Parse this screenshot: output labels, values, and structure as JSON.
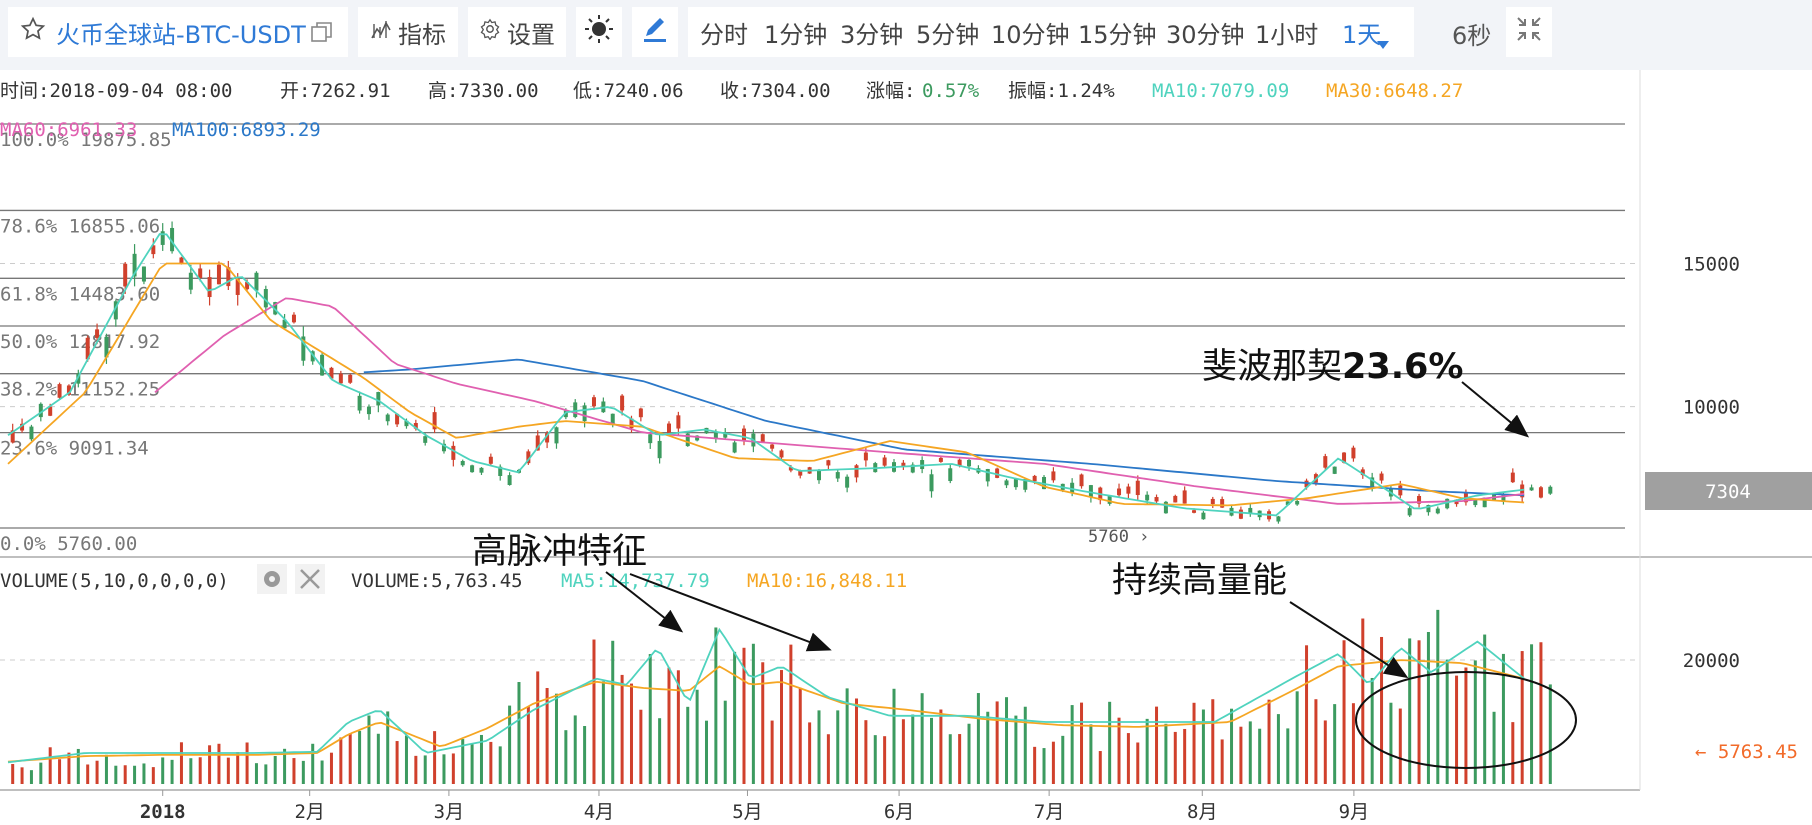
{
  "toolbar": {
    "title": "火币全球站-BTC-USDT",
    "indicators_label": "指标",
    "settings_label": "设置",
    "periods": [
      "分时",
      "1分钟",
      "3分钟",
      "5分钟",
      "10分钟",
      "15分钟",
      "30分钟",
      "1小时",
      "1天"
    ],
    "active_period": "1天",
    "refresh_label": "6秒"
  },
  "info": {
    "time": "时间:2018-09-04 08:00",
    "open": "开:7262.91",
    "high": "高:7330.00",
    "low": "低:7240.06",
    "close": "收:7304.00",
    "change_label": "涨幅:",
    "change_value": "0.57%",
    "amp": "振幅:1.24%",
    "ma10": "MA10:7079.09",
    "ma30": "MA30:6648.27",
    "ma60": "MA60:6961.33",
    "ma100": "MA100:6893.29"
  },
  "volume_header": {
    "title": "VOLUME(5,10,0,0,0,0)",
    "value": "VOLUME:5,763.45",
    "ma5": "MA5:14,737.79",
    "ma10": "MA10:16,848.11"
  },
  "annotations": {
    "fib": "斐波那契",
    "fib_pct": "23.6%",
    "pulse": "高脉冲特征",
    "sustained": "持续高量能"
  },
  "colors": {
    "up": "#d0402c",
    "down": "#3c9a5f",
    "ma10": "#4fd3be",
    "ma30": "#f5a623",
    "ma60": "#e060b0",
    "ma100": "#2b78c8",
    "accent": "#2f7ad6",
    "vol_current": "#f26b2a"
  },
  "icons": {
    "star": "star-outline-icon",
    "fullscreen": "window-icon",
    "indicators": "bar-indicator-icon",
    "settings": "gear-icon",
    "theme": "sun-icon",
    "draw": "pencil-icon",
    "collapse": "collapse-arrows-icon",
    "dropdown": "caret-down-icon"
  },
  "chart_data": {
    "type": "candlestick",
    "x_labels": [
      "2018",
      "2月",
      "3月",
      "4月",
      "5月",
      "6月",
      "7月",
      "8月",
      "9月"
    ],
    "fibonacci": [
      {
        "label": "100.0%",
        "value": 19875.85
      },
      {
        "label": "78.6%",
        "value": 16855.06
      },
      {
        "label": "61.8%",
        "value": 14483.6
      },
      {
        "label": "50.0%",
        "value": 12817.92
      },
      {
        "label": "38.2%",
        "value": 11152.25
      },
      {
        "label": "23.6%",
        "value": 9091.34
      },
      {
        "label": "0.0%",
        "value": 5760.0
      }
    ],
    "price_ticks": [
      15000,
      10000
    ],
    "current_price": 7304,
    "low_marker": 5760,
    "volume_ticks": [
      20000
    ],
    "current_volume": 5763.45,
    "ma_price_knots": {
      "ma10": [
        [
          0,
          9000
        ],
        [
          0.04,
          10500
        ],
        [
          0.08,
          14500
        ],
        [
          0.1,
          16200
        ],
        [
          0.13,
          14000
        ],
        [
          0.15,
          14600
        ],
        [
          0.18,
          13000
        ],
        [
          0.21,
          10900
        ],
        [
          0.24,
          10200
        ],
        [
          0.27,
          9000
        ],
        [
          0.3,
          8100
        ],
        [
          0.33,
          7700
        ],
        [
          0.36,
          9800
        ],
        [
          0.39,
          10000
        ],
        [
          0.42,
          9000
        ],
        [
          0.45,
          9200
        ],
        [
          0.48,
          8900
        ],
        [
          0.51,
          7750
        ],
        [
          0.56,
          7850
        ],
        [
          0.61,
          8000
        ],
        [
          0.65,
          7500
        ],
        [
          0.7,
          7000
        ],
        [
          0.76,
          6450
        ],
        [
          0.82,
          6200
        ],
        [
          0.86,
          8200
        ],
        [
          0.88,
          7500
        ],
        [
          0.91,
          6400
        ],
        [
          0.95,
          6900
        ],
        [
          0.98,
          7100
        ]
      ],
      "ma30": [
        [
          0,
          8000
        ],
        [
          0.05,
          10500
        ],
        [
          0.1,
          15000
        ],
        [
          0.14,
          15000
        ],
        [
          0.17,
          13000
        ],
        [
          0.2,
          12000
        ],
        [
          0.23,
          11000
        ],
        [
          0.26,
          9800
        ],
        [
          0.29,
          8900
        ],
        [
          0.33,
          9300
        ],
        [
          0.36,
          9500
        ],
        [
          0.41,
          9300
        ],
        [
          0.47,
          8200
        ],
        [
          0.52,
          8100
        ],
        [
          0.57,
          8800
        ],
        [
          0.62,
          8400
        ],
        [
          0.67,
          7200
        ],
        [
          0.72,
          6600
        ],
        [
          0.79,
          6550
        ],
        [
          0.84,
          6800
        ],
        [
          0.9,
          7300
        ],
        [
          0.94,
          6800
        ],
        [
          0.98,
          6650
        ]
      ],
      "ma60": [
        [
          0.095,
          10500
        ],
        [
          0.14,
          12500
        ],
        [
          0.18,
          13800
        ],
        [
          0.21,
          13500
        ],
        [
          0.25,
          11500
        ],
        [
          0.29,
          10800
        ],
        [
          0.34,
          10200
        ],
        [
          0.41,
          9100
        ],
        [
          0.5,
          8700
        ],
        [
          0.57,
          8400
        ],
        [
          0.67,
          8000
        ],
        [
          0.77,
          7200
        ],
        [
          0.86,
          6600
        ],
        [
          0.94,
          6700
        ],
        [
          0.98,
          6950
        ]
      ],
      "ma100": [
        [
          0.23,
          11200
        ],
        [
          0.26,
          11300
        ],
        [
          0.33,
          11650
        ],
        [
          0.41,
          10900
        ],
        [
          0.49,
          9500
        ],
        [
          0.58,
          8500
        ],
        [
          0.7,
          8000
        ],
        [
          0.82,
          7400
        ],
        [
          0.92,
          7050
        ],
        [
          0.98,
          6900
        ]
      ]
    },
    "volume_ma_knots": {
      "ma5": [
        [
          0,
          3500
        ],
        [
          0.05,
          5000
        ],
        [
          0.1,
          5000
        ],
        [
          0.16,
          5000
        ],
        [
          0.2,
          5200
        ],
        [
          0.22,
          10000
        ],
        [
          0.24,
          12000
        ],
        [
          0.27,
          5000
        ],
        [
          0.31,
          7000
        ],
        [
          0.34,
          12000
        ],
        [
          0.38,
          17000
        ],
        [
          0.4,
          16000
        ],
        [
          0.42,
          22000
        ],
        [
          0.44,
          13000
        ],
        [
          0.46,
          25000
        ],
        [
          0.48,
          17000
        ],
        [
          0.5,
          19000
        ],
        [
          0.53,
          14000
        ],
        [
          0.57,
          11000
        ],
        [
          0.62,
          11000
        ],
        [
          0.67,
          10000
        ],
        [
          0.72,
          10000
        ],
        [
          0.78,
          10000
        ],
        [
          0.83,
          17000
        ],
        [
          0.86,
          21000
        ],
        [
          0.88,
          16000
        ],
        [
          0.9,
          22000
        ],
        [
          0.92,
          18000
        ],
        [
          0.95,
          23000
        ],
        [
          0.98,
          17000
        ]
      ],
      "ma10": [
        [
          0,
          3600
        ],
        [
          0.05,
          4500
        ],
        [
          0.1,
          4700
        ],
        [
          0.16,
          4700
        ],
        [
          0.2,
          5000
        ],
        [
          0.22,
          8000
        ],
        [
          0.24,
          10000
        ],
        [
          0.28,
          6000
        ],
        [
          0.31,
          9000
        ],
        [
          0.34,
          13000
        ],
        [
          0.38,
          16500
        ],
        [
          0.41,
          15500
        ],
        [
          0.44,
          15000
        ],
        [
          0.46,
          19000
        ],
        [
          0.48,
          16000
        ],
        [
          0.5,
          16500
        ],
        [
          0.54,
          13000
        ],
        [
          0.58,
          12000
        ],
        [
          0.63,
          10500
        ],
        [
          0.68,
          9500
        ],
        [
          0.73,
          9200
        ],
        [
          0.79,
          10000
        ],
        [
          0.83,
          15000
        ],
        [
          0.86,
          19000
        ],
        [
          0.9,
          20000
        ],
        [
          0.94,
          19500
        ],
        [
          0.98,
          17000
        ]
      ]
    }
  }
}
